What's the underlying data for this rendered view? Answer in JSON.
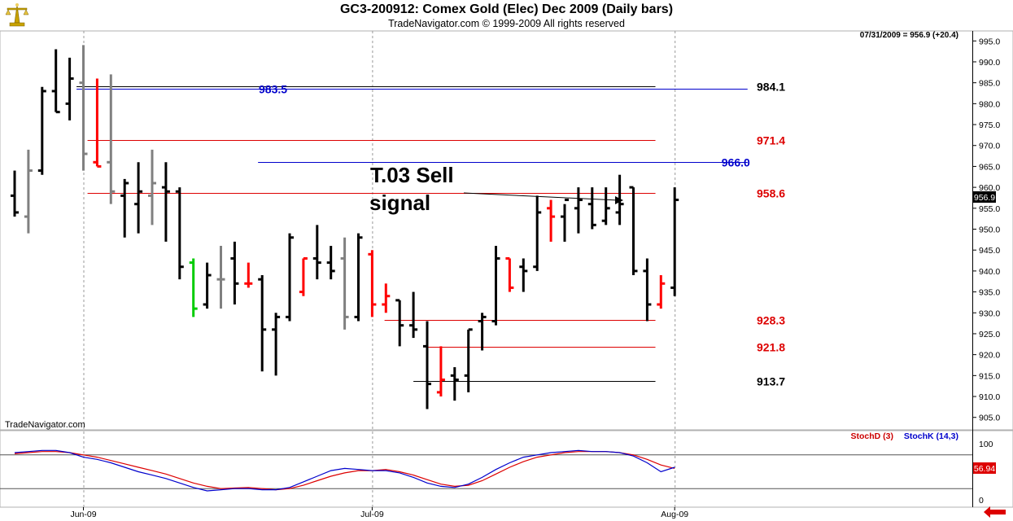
{
  "header": {
    "title": "GC3-200912:  Comex Gold (Elec) Dec 2009  (Daily bars)",
    "subtitle": "TradeNavigator.com © 1999-2009 All rights reserved",
    "logo_icon": "gold-scales-icon"
  },
  "main": {
    "last_value_text": "07/31/2009 = 956.9 (+20.4)",
    "watermark": "TradeNavigator.com",
    "annotation": [
      "T.03 Sell",
      "signal"
    ],
    "last_price_tag": "956.9"
  },
  "indicator": {
    "legend_d": "StochD (3)",
    "legend_k": "StochK (14,3)",
    "last_value_tag": "56.94",
    "y_ticks": [
      "100",
      "0"
    ]
  },
  "chart_data": [
    {
      "type": "ohlc",
      "title": "GC3-200912:  Comex Gold (Elec) Dec 2009  (Daily bars)",
      "ylim": [
        903,
        997
      ],
      "y_ticks": [
        995,
        990,
        985,
        980,
        975,
        970,
        965,
        960,
        955,
        950,
        945,
        940,
        935,
        930,
        925,
        920,
        915,
        910,
        905
      ],
      "x_ticks": [
        {
          "label": "Jun-09",
          "index": 5
        },
        {
          "label": "Jul-09",
          "index": 26
        },
        {
          "label": "Aug-09",
          "index": 48
        }
      ],
      "colors": {
        "up": "#000000",
        "down": "#000000",
        "gray": "#808080",
        "red": "#ff0000",
        "green": "#00cc00",
        "blue_line": "#0000cc",
        "red_line": "#dd0000",
        "black_line": "#000000"
      },
      "bars": [
        [
          958,
          964,
          953,
          954,
          "black"
        ],
        [
          953,
          969,
          949,
          964,
          "gray"
        ],
        [
          964,
          984,
          963,
          983,
          "black"
        ],
        [
          983,
          993,
          978,
          978,
          "black"
        ],
        [
          980,
          991,
          976,
          986,
          "black"
        ],
        [
          985,
          994,
          964,
          968,
          "gray"
        ],
        [
          966,
          986,
          965,
          965,
          "red"
        ],
        [
          966,
          987,
          956,
          959,
          "gray"
        ],
        [
          958,
          962,
          948,
          961,
          "black"
        ],
        [
          956,
          966,
          949,
          959,
          "black"
        ],
        [
          958,
          969,
          951,
          961,
          "gray"
        ],
        [
          960,
          966,
          947,
          959,
          "black"
        ],
        [
          959,
          960,
          938,
          941,
          "black"
        ],
        [
          942,
          943,
          929,
          931,
          "green"
        ],
        [
          932,
          942,
          931,
          939,
          "black"
        ],
        [
          938,
          946,
          931,
          938,
          "gray"
        ],
        [
          943,
          947,
          932,
          937,
          "black"
        ],
        [
          937,
          942,
          936,
          937,
          "red"
        ],
        [
          938,
          939,
          916,
          926,
          "black"
        ],
        [
          926,
          930,
          915,
          929,
          "black"
        ],
        [
          929,
          949,
          928,
          948,
          "black"
        ],
        [
          935,
          943,
          934,
          943,
          "red"
        ],
        [
          943,
          951,
          938,
          942,
          "black"
        ],
        [
          942,
          946,
          938,
          940,
          "black"
        ],
        [
          943,
          948,
          926,
          929,
          "gray"
        ],
        [
          929,
          949,
          928,
          948,
          "black"
        ],
        [
          944,
          945,
          929,
          932,
          "red"
        ],
        [
          932,
          937,
          930,
          934,
          "red"
        ],
        [
          933,
          933,
          922,
          927,
          "black"
        ],
        [
          927,
          935,
          924,
          926,
          "black"
        ],
        [
          922,
          928,
          907,
          913,
          "black"
        ],
        [
          911,
          922,
          910,
          914,
          "red"
        ],
        [
          915,
          917,
          909,
          914,
          "black"
        ],
        [
          915,
          926,
          911,
          926,
          "black"
        ],
        [
          928,
          930,
          921,
          929,
          "black"
        ],
        [
          928,
          946,
          927,
          943,
          "black"
        ],
        [
          943,
          943,
          935,
          936,
          "red"
        ],
        [
          941,
          943,
          935,
          940,
          "black"
        ],
        [
          941,
          958,
          940,
          954,
          "black"
        ],
        [
          955,
          957,
          947,
          953,
          "red"
        ],
        [
          953,
          956,
          947,
          957,
          "black"
        ],
        [
          955,
          960,
          949,
          957,
          "black"
        ],
        [
          956,
          960,
          950,
          951,
          "black"
        ],
        [
          952,
          960,
          951,
          955,
          "black"
        ],
        [
          954,
          963,
          951,
          956,
          "black"
        ],
        [
          960,
          960,
          939,
          940,
          "black"
        ],
        [
          940,
          943,
          928,
          932,
          "black"
        ],
        [
          932,
          939,
          931,
          937,
          "red"
        ],
        [
          936,
          960,
          934,
          957,
          "black"
        ]
      ],
      "levels": [
        {
          "value": 984.1,
          "label": "984.1",
          "color": "#000000",
          "from": 4.5,
          "to": 46.6,
          "label_pos": "right"
        },
        {
          "value": 983.5,
          "label": "983.5",
          "color": "#0000cc",
          "from": 4.5,
          "to": 53.3,
          "label_pos": "left"
        },
        {
          "value": 971.4,
          "label": "971.4",
          "color": "#dd0000",
          "from": 5.3,
          "to": 46.6,
          "label_pos": "right"
        },
        {
          "value": 966.0,
          "label": "966.0",
          "color": "#0000cc",
          "from": 17.7,
          "to": 53.3,
          "label_pos": "right"
        },
        {
          "value": 958.6,
          "label": "958.6",
          "color": "#dd0000",
          "from": 5.3,
          "to": 46.6,
          "label_pos": "right"
        },
        {
          "value": 928.3,
          "label": "928.3",
          "color": "#dd0000",
          "from": 26.9,
          "to": 46.6,
          "label_pos": "right"
        },
        {
          "value": 921.8,
          "label": "921.8",
          "color": "#dd0000",
          "from": 29.9,
          "to": 46.6,
          "label_pos": "right"
        },
        {
          "value": 913.7,
          "label": "913.7",
          "color": "#000000",
          "from": 29.0,
          "to": 46.6,
          "label_pos": "right"
        }
      ]
    },
    {
      "type": "line",
      "title": "",
      "ylim": [
        0,
        100
      ],
      "y_ticks": [
        100,
        0
      ],
      "reference_lines": [
        80,
        20
      ],
      "series": [
        {
          "name": "StochD (3)",
          "color": "#dd0000",
          "values": [
            82,
            84,
            86,
            86,
            84,
            80,
            76,
            70,
            64,
            58,
            52,
            46,
            38,
            30,
            24,
            20,
            21,
            22,
            20,
            18,
            20,
            26,
            34,
            42,
            48,
            52,
            52,
            54,
            50,
            44,
            36,
            28,
            24,
            26,
            34,
            46,
            58,
            68,
            76,
            80,
            84,
            86,
            86,
            86,
            84,
            80,
            72,
            62,
            56
          ]
        },
        {
          "name": "StochK (14,3)",
          "color": "#0000cc",
          "values": [
            84,
            86,
            88,
            88,
            84,
            76,
            72,
            66,
            58,
            50,
            44,
            38,
            30,
            22,
            16,
            18,
            20,
            20,
            18,
            18,
            22,
            32,
            42,
            52,
            56,
            54,
            52,
            52,
            48,
            40,
            30,
            24,
            22,
            28,
            40,
            54,
            66,
            76,
            80,
            84,
            86,
            88,
            86,
            86,
            84,
            78,
            66,
            50,
            58
          ]
        }
      ]
    }
  ]
}
